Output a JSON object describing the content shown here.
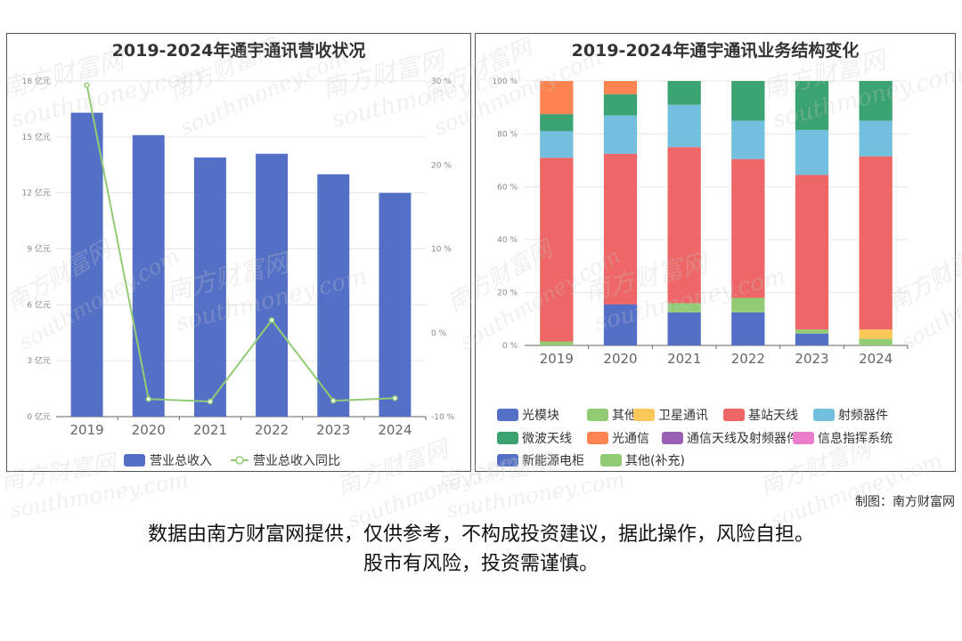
{
  "left_chart": {
    "title": "2019-2024年通宇通讯营收状况",
    "legend": [
      "营业总收入",
      "营业总收入同比"
    ]
  },
  "right_chart": {
    "title": "2019-2024年通宇通讯业务结构变化",
    "legend": [
      "光模块",
      "其他",
      "卫星通讯",
      "基站天线",
      "射频器件",
      "微波天线",
      "光通信",
      "通信天线及射频器件",
      "信息指挥系统",
      "新能源电柜",
      "其他(补充)"
    ]
  },
  "footer": {
    "credit": "制图：南方财富网",
    "disclaimer_line1": "数据由南方财富网提供，仅供参考，不构成投资建议，据此操作，风险自担。",
    "disclaimer_line2": "股市有风险，投资需谨慎。"
  },
  "watermark": {
    "brand": "南方财富网",
    "site": "southmoney.com"
  },
  "colors": {
    "bar": "#5470c6",
    "line": "#91cc75",
    "series": [
      "#5470c6",
      "#91cc75",
      "#fac858",
      "#ee6666",
      "#73c0de",
      "#3ba272",
      "#fc8452",
      "#9a60b4",
      "#ea7ccc",
      "#5470c6",
      "#91cc75"
    ]
  },
  "chart_data": [
    {
      "type": "bar+line",
      "title": "2019-2024年通宇通讯营收状况",
      "categories": [
        "2019",
        "2020",
        "2021",
        "2022",
        "2023",
        "2024"
      ],
      "y_ticks": [
        "0 亿元",
        "3 亿元",
        "6 亿元",
        "9 亿元",
        "12 亿元",
        "15 亿元",
        "18 亿元"
      ],
      "y_ticks_right": [
        "-10 %",
        "0 %",
        "10 %",
        "20 %",
        "30 %"
      ],
      "ylim": [
        0,
        18
      ],
      "y2lim": [
        -10,
        30
      ],
      "series": [
        {
          "name": "营业总收入",
          "type": "bar",
          "values": [
            16.3,
            15.1,
            13.9,
            14.1,
            13.0,
            12.0
          ]
        },
        {
          "name": "营业总收入同比",
          "type": "line",
          "axis": "right",
          "values": [
            29.5,
            -7.9,
            -8.2,
            1.5,
            -8.1,
            -7.8
          ]
        }
      ],
      "legend": "bottom",
      "grid": true
    },
    {
      "type": "bar",
      "stacked": true,
      "percent": true,
      "title": "2019-2024年通宇通讯业务结构变化",
      "categories": [
        "2019",
        "2020",
        "2021",
        "2022",
        "2023",
        "2024"
      ],
      "y_ticks": [
        "0 %",
        "20 %",
        "40 %",
        "60 %",
        "80 %",
        "100 %"
      ],
      "ylim": [
        0,
        100
      ],
      "series": [
        {
          "name": "光模块",
          "values": [
            0,
            15.5,
            12.5,
            12.5,
            4.5,
            0
          ]
        },
        {
          "name": "其他",
          "values": [
            1.5,
            0,
            3.5,
            5.5,
            1.5,
            2.5
          ]
        },
        {
          "name": "卫星通讯",
          "values": [
            0,
            0,
            0,
            0,
            0,
            3.5
          ]
        },
        {
          "name": "基站天线",
          "values": [
            69.5,
            57.0,
            59.0,
            52.5,
            58.5,
            65.5
          ]
        },
        {
          "name": "射频器件",
          "values": [
            10.0,
            14.5,
            16.0,
            14.5,
            17.0,
            13.5
          ]
        },
        {
          "name": "微波天线",
          "values": [
            6.5,
            8.0,
            9.0,
            15.0,
            18.5,
            15.0
          ]
        },
        {
          "name": "光通信",
          "values": [
            12.5,
            5.0,
            0,
            0,
            0,
            0
          ]
        },
        {
          "name": "通信天线及射频器件",
          "values": [
            0,
            0,
            0,
            0,
            0,
            0
          ]
        },
        {
          "name": "信息指挥系统",
          "values": [
            0,
            0,
            0,
            0,
            0,
            0
          ]
        },
        {
          "name": "新能源电柜",
          "values": [
            0,
            0,
            0,
            0,
            0,
            0
          ]
        },
        {
          "name": "其他(补充)",
          "values": [
            0,
            0,
            0,
            0,
            0,
            0
          ]
        }
      ],
      "legend": "bottom",
      "grid": true
    }
  ]
}
